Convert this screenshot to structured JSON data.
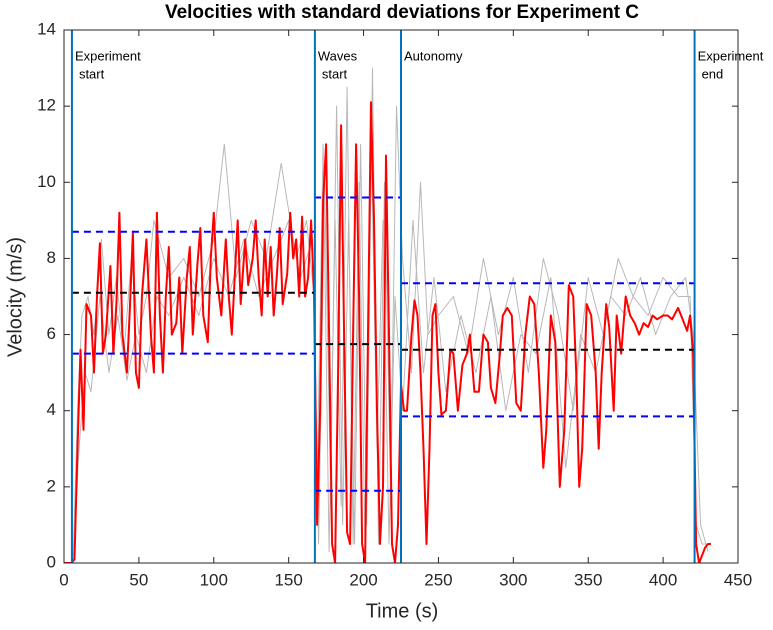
{
  "chart_data": {
    "type": "line",
    "title": "Velocities with standard deviations for Experiment C",
    "x_label": "Time (s)",
    "y_label": "Velocity (m/s)",
    "xlim": [
      0,
      450
    ],
    "xticks": [
      0,
      50,
      100,
      150,
      200,
      250,
      300,
      350,
      400,
      450
    ],
    "ylim": [
      0,
      14
    ],
    "yticks": [
      0,
      2,
      4,
      6,
      8,
      10,
      12,
      14
    ],
    "grid": false,
    "series": [
      {
        "color": "#b8b8b8",
        "width": 1,
        "x": [
          0,
          6,
          9,
          12,
          16,
          20,
          25,
          30,
          35,
          40,
          45,
          50,
          55,
          60,
          70,
          80,
          90,
          100,
          107,
          115,
          125,
          135,
          145,
          155,
          162,
          167,
          170,
          174,
          178,
          182,
          186,
          190,
          194,
          198,
          202,
          206,
          210,
          214,
          218,
          222,
          226,
          232,
          238,
          243,
          250,
          260,
          270,
          280,
          290,
          300,
          310,
          320,
          330,
          340,
          350,
          360,
          370,
          380,
          390,
          400,
          410,
          418,
          422,
          426,
          430
        ],
        "values": [
          0,
          0,
          4,
          6.5,
          7,
          6,
          8.5,
          6,
          7.5,
          5.5,
          8,
          6,
          7,
          9,
          7.5,
          8,
          7,
          8.5,
          11,
          7.5,
          9,
          8,
          10.5,
          8,
          9,
          7,
          0.5,
          10,
          2,
          12,
          1,
          9,
          0.5,
          11,
          1,
          13,
          0.5,
          10,
          2,
          12,
          8,
          5,
          10,
          6,
          6.5,
          7,
          5.5,
          8,
          6,
          7.5,
          5,
          8,
          6.5,
          4,
          7.5,
          6,
          8,
          7,
          6.5,
          7.5,
          7,
          7,
          1,
          0.5,
          0.5
        ]
      },
      {
        "color": "#b8b8b8",
        "width": 1,
        "x": [
          0,
          6,
          10,
          14,
          18,
          24,
          30,
          36,
          42,
          48,
          55,
          62,
          70,
          80,
          90,
          100,
          110,
          120,
          130,
          140,
          150,
          158,
          166,
          169,
          173,
          177,
          181,
          185,
          189,
          193,
          197,
          201,
          205,
          209,
          213,
          217,
          221,
          226,
          233,
          240,
          247,
          255,
          265,
          275,
          285,
          295,
          305,
          315,
          325,
          335,
          345,
          355,
          365,
          375,
          385,
          395,
          405,
          415,
          420,
          425,
          430
        ],
        "values": [
          0,
          0,
          3,
          5,
          4.5,
          7,
          5,
          6.5,
          4.8,
          6,
          5,
          7,
          6.5,
          7.5,
          6.5,
          8,
          7,
          8.5,
          7,
          8,
          9,
          7.5,
          8.5,
          2,
          11,
          0.3,
          9,
          1.5,
          12.5,
          0.5,
          10,
          0.3,
          11.5,
          3,
          9,
          0.5,
          7,
          4,
          9,
          5,
          7.5,
          4.5,
          6.5,
          5,
          7,
          4,
          6,
          5.5,
          7.5,
          2.5,
          6,
          5,
          7,
          6.5,
          7.5,
          6,
          7,
          7.5,
          6,
          1,
          0.3
        ]
      },
      {
        "color": "#ff0000",
        "width": 2,
        "x": [
          0,
          5,
          7,
          9,
          11,
          13,
          15,
          18,
          20,
          22,
          24,
          26,
          28,
          31,
          33,
          35,
          37,
          39,
          42,
          44,
          46,
          48,
          50,
          52,
          55,
          58,
          60,
          62,
          64,
          66,
          68,
          70,
          72,
          75,
          77,
          79,
          82,
          84,
          86,
          89,
          91,
          93,
          96,
          98,
          100,
          102,
          105,
          108,
          110,
          112,
          114,
          116,
          118,
          121,
          123,
          126,
          128,
          130,
          132,
          134,
          136,
          138,
          140,
          142,
          144,
          146,
          149,
          151,
          153,
          155,
          157,
          159,
          161,
          163,
          165,
          167,
          169,
          171,
          173,
          175,
          177,
          179,
          181,
          183,
          185,
          187,
          189,
          191,
          193,
          195,
          197,
          199,
          201,
          203,
          205,
          207,
          209,
          211,
          213,
          215,
          217,
          219,
          221,
          223,
          225,
          227,
          229,
          232,
          234,
          236,
          238,
          240,
          242,
          244,
          246,
          248,
          250,
          252,
          255,
          258,
          260,
          263,
          266,
          269,
          271,
          274,
          277,
          280,
          283,
          285,
          288,
          291,
          293,
          296,
          299,
          302,
          305,
          308,
          311,
          314,
          317,
          320,
          322,
          325,
          328,
          331,
          334,
          337,
          340,
          342,
          344,
          346,
          349,
          352,
          355,
          357,
          359,
          362,
          364,
          367,
          369,
          372,
          375,
          378,
          381,
          384,
          387,
          390,
          393,
          396,
          400,
          403,
          406,
          410,
          413,
          416,
          418,
          420,
          422,
          424,
          426,
          428,
          430,
          432
        ],
        "values": [
          0,
          0,
          0.1,
          3,
          5.6,
          3.5,
          6.8,
          6.5,
          5,
          7,
          8.4,
          5.5,
          6,
          7.8,
          5.5,
          6.8,
          9.2,
          6,
          5,
          6.7,
          8.7,
          5,
          4.6,
          7,
          8.5,
          6,
          5,
          9.2,
          6.5,
          5,
          7,
          8.3,
          6,
          6.3,
          7.5,
          5.5,
          7.5,
          8.3,
          6,
          7.8,
          8.8,
          6.5,
          5.8,
          8,
          9.2,
          7.5,
          6.5,
          8.5,
          7,
          6,
          7.5,
          9,
          6.8,
          8.5,
          7.3,
          8,
          9,
          7.5,
          6.5,
          8.5,
          7,
          8.3,
          6.5,
          7.5,
          8.8,
          6.8,
          7.6,
          9.2,
          8,
          8.5,
          7,
          9.1,
          7,
          7.5,
          9,
          7,
          1,
          4,
          9.5,
          11,
          6,
          0.5,
          0,
          5,
          11.5,
          6,
          0.8,
          0.5,
          6,
          11,
          7,
          0.5,
          0,
          6,
          12.1,
          9,
          4,
          0.5,
          2,
          10.7,
          6,
          0.5,
          0,
          1,
          4.7,
          4,
          4,
          6,
          6.9,
          6.5,
          5,
          3,
          0.5,
          3,
          6.5,
          6.8,
          5,
          3.9,
          4,
          5.6,
          5.5,
          4,
          5.2,
          5.5,
          6,
          4.5,
          4.5,
          6,
          5.8,
          4.6,
          4.2,
          5.5,
          6.5,
          6.7,
          6.5,
          4.2,
          4,
          6,
          7,
          6.8,
          5,
          2.5,
          3.5,
          6.5,
          5.8,
          2,
          3.5,
          7.3,
          7,
          5,
          2,
          3,
          6.8,
          6.5,
          5,
          3,
          5,
          6.8,
          6.2,
          4,
          6.5,
          5.5,
          7,
          6.5,
          6.3,
          6,
          6.3,
          6.2,
          6.5,
          6.4,
          6.5,
          6.5,
          6.4,
          6.7,
          6.4,
          6.1,
          6.5,
          5.5,
          0.5,
          0,
          0.2,
          0.4,
          0.5,
          0.5
        ]
      },
      {
        "color": "#0000ff",
        "width": 2,
        "dash": true,
        "x": [
          5.3,
          167
        ],
        "values": [
          8.7,
          8.7
        ]
      },
      {
        "color": "#000000",
        "width": 2,
        "dash": true,
        "x": [
          5.3,
          167
        ],
        "values": [
          7.1,
          7.1
        ]
      },
      {
        "color": "#0000ff",
        "width": 2,
        "dash": true,
        "x": [
          5.3,
          167
        ],
        "values": [
          5.5,
          5.5
        ]
      },
      {
        "color": "#0000ff",
        "width": 2,
        "dash": true,
        "x": [
          167,
          225
        ],
        "values": [
          9.6,
          9.6
        ]
      },
      {
        "color": "#000000",
        "width": 2,
        "dash": true,
        "x": [
          167,
          225
        ],
        "values": [
          5.75,
          5.75
        ]
      },
      {
        "color": "#0000ff",
        "width": 2,
        "dash": true,
        "x": [
          167,
          225
        ],
        "values": [
          1.9,
          1.9
        ]
      },
      {
        "color": "#0000ff",
        "width": 2,
        "dash": true,
        "x": [
          225,
          421
        ],
        "values": [
          7.35,
          7.35
        ]
      },
      {
        "color": "#000000",
        "width": 2,
        "dash": true,
        "x": [
          225,
          421
        ],
        "values": [
          5.6,
          5.6
        ]
      },
      {
        "color": "#0000ff",
        "width": 2,
        "dash": true,
        "x": [
          225,
          421
        ],
        "values": [
          3.85,
          3.85
        ]
      }
    ],
    "events": [
      {
        "x": 5.3,
        "color": "#0072bd",
        "label": [
          "Experiment",
          "start"
        ]
      },
      {
        "x": 167.5,
        "color": "#0072bd",
        "label": [
          "Waves",
          "start"
        ]
      },
      {
        "x": 225,
        "color": "#0072bd",
        "label": [
          "Autonomy"
        ]
      },
      {
        "x": 421,
        "color": "#0072bd",
        "label": [
          "Experiment",
          "end"
        ]
      }
    ]
  }
}
